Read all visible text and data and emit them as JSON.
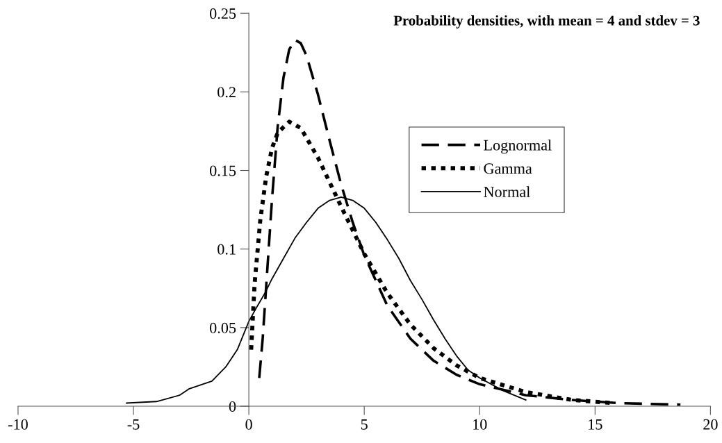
{
  "chart_data": {
    "type": "line",
    "title": "Probability densities, with mean = 4 and stdev = 3",
    "xlim": [
      -10,
      20
    ],
    "xticks": [
      -10,
      -5,
      0,
      5,
      10,
      15,
      20
    ],
    "ylim": [
      0,
      0.25
    ],
    "yticks": [
      0,
      0.05,
      0.1,
      0.15,
      0.2,
      0.25
    ],
    "grid": false,
    "legend": "right",
    "marker": "none",
    "series": [
      {
        "name": "Lognormal",
        "color": "#000000",
        "line_style": "dashed",
        "x": [
          0.45,
          0.6,
          0.8,
          1.0,
          1.25,
          1.5,
          1.75,
          2.0,
          2.25,
          2.5,
          3,
          3.5,
          4,
          4.5,
          5,
          6,
          7,
          8,
          9,
          10,
          12,
          14,
          16,
          18.7
        ],
        "values": [
          0.018,
          0.043,
          0.087,
          0.131,
          0.178,
          0.209,
          0.227,
          0.233,
          0.231,
          0.223,
          0.198,
          0.169,
          0.141,
          0.117,
          0.096,
          0.064,
          0.043,
          0.029,
          0.02,
          0.014,
          0.007,
          0.004,
          0.002,
          0.001
        ]
      },
      {
        "name": "Gamma",
        "color": "#000000",
        "line_style": "dotted",
        "x": [
          0.1,
          0.25,
          0.5,
          0.75,
          1.0,
          1.25,
          1.75,
          2.25,
          3,
          4,
          5,
          6,
          7,
          8,
          9,
          10,
          12,
          14,
          15.8
        ],
        "values": [
          0.036,
          0.078,
          0.119,
          0.146,
          0.164,
          0.174,
          0.181,
          0.177,
          0.158,
          0.127,
          0.097,
          0.072,
          0.052,
          0.037,
          0.026,
          0.018,
          0.009,
          0.004,
          0.002
        ]
      },
      {
        "name": "Normal",
        "color": "#000000",
        "line_style": "solid",
        "x": [
          -5.3,
          -4,
          -3,
          -2.6,
          -1.6,
          -1,
          -0.5,
          0,
          0.3,
          0.7,
          1,
          1.5,
          2,
          2.5,
          3,
          3.5,
          4,
          4.5,
          5,
          5.5,
          6,
          6.5,
          7,
          7.5,
          8,
          8.5,
          9,
          9.5,
          10,
          11,
          12
        ],
        "values": [
          0.002,
          0.003,
          0.007,
          0.011,
          0.016,
          0.025,
          0.036,
          0.054,
          0.062,
          0.072,
          0.081,
          0.094,
          0.107,
          0.117,
          0.126,
          0.131,
          0.133,
          0.131,
          0.126,
          0.117,
          0.106,
          0.094,
          0.08,
          0.068,
          0.055,
          0.043,
          0.032,
          0.023,
          0.018,
          0.01,
          0.004
        ]
      }
    ]
  }
}
